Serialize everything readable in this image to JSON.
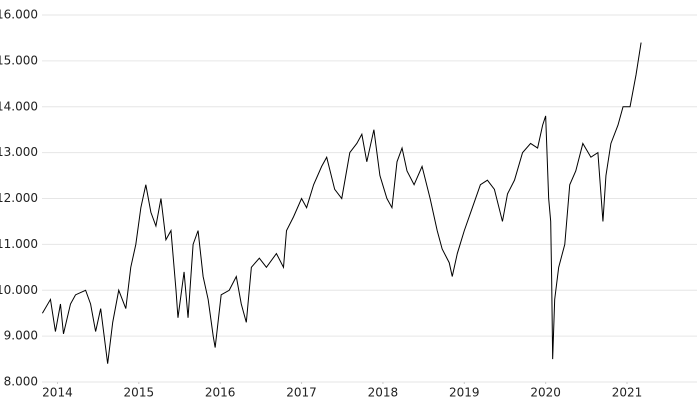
{
  "chart_data": {
    "type": "line",
    "x": [
      2013.815,
      2013.914,
      2013.975,
      2014.037,
      2014.074,
      2014.16,
      2014.222,
      2014.346,
      2014.407,
      2014.469,
      2014.531,
      2014.617,
      2014.679,
      2014.753,
      2014.84,
      2014.901,
      2014.963,
      2015.025,
      2015.086,
      2015.148,
      2015.21,
      2015.272,
      2015.333,
      2015.395,
      2015.457,
      2015.481,
      2015.556,
      2015.605,
      2015.667,
      2015.728,
      2015.79,
      2015.852,
      2015.914,
      2015.938,
      2016.012,
      2016.111,
      2016.198,
      2016.259,
      2016.321,
      2016.383,
      2016.481,
      2016.568,
      2016.691,
      2016.778,
      2016.815,
      2016.901,
      2017.0,
      2017.062,
      2017.148,
      2017.247,
      2017.309,
      2017.407,
      2017.494,
      2017.593,
      2017.679,
      2017.741,
      2017.802,
      2017.889,
      2017.963,
      2018.049,
      2018.111,
      2018.173,
      2018.235,
      2018.296,
      2018.383,
      2018.481,
      2018.58,
      2018.667,
      2018.728,
      2018.815,
      2018.852,
      2018.914,
      2019.0,
      2019.099,
      2019.198,
      2019.284,
      2019.37,
      2019.469,
      2019.531,
      2019.617,
      2019.716,
      2019.815,
      2019.901,
      2019.963,
      2020.0,
      2020.037,
      2020.062,
      2020.074,
      2020.086,
      2020.111,
      2020.16,
      2020.235,
      2020.296,
      2020.37,
      2020.457,
      2020.556,
      2020.642,
      2020.704,
      2020.741,
      2020.802,
      2020.889,
      2020.951,
      2021.037,
      2021.111,
      2021.173
    ],
    "series": [
      {
        "color": "#000000",
        "values": [
          9500,
          9800,
          9100,
          9700,
          9050,
          9700,
          9900,
          10000,
          9700,
          9100,
          9600,
          8400,
          9300,
          10000,
          9600,
          10500,
          11000,
          11800,
          12300,
          11700,
          11400,
          12000,
          11100,
          11300,
          10000,
          9400,
          10400,
          9400,
          11000,
          11300,
          10300,
          9800,
          9000,
          8750,
          9900,
          10000,
          10300,
          9700,
          9300,
          10500,
          10700,
          10500,
          10800,
          10500,
          11300,
          11600,
          12000,
          11800,
          12300,
          12700,
          12900,
          12200,
          12000,
          13000,
          13200,
          13400,
          12800,
          13500,
          12500,
          12000,
          11800,
          12800,
          13100,
          12600,
          12300,
          12700,
          12000,
          11300,
          10900,
          10600,
          10300,
          10800,
          11300,
          11800,
          12300,
          12400,
          12200,
          11500,
          12100,
          12400,
          13000,
          13200,
          13100,
          13600,
          13800,
          12000,
          11500,
          10200,
          8500,
          9800,
          10500,
          11000,
          12300,
          12600,
          13200,
          12900,
          13000,
          11500,
          12500,
          13200,
          13600,
          14000,
          14000,
          14700,
          15400
        ]
      }
    ],
    "xlim": [
      2013.81,
      2021.86
    ],
    "xticks": [
      2014,
      2015,
      2016,
      2017,
      2018,
      2019,
      2020,
      2021
    ],
    "ylim": [
      8000,
      16000
    ],
    "yticks": [
      {
        "value": 8000,
        "label": "8.000"
      },
      {
        "value": 9000,
        "label": "9.000"
      },
      {
        "value": 10000,
        "label": "10.000"
      },
      {
        "value": 11000,
        "label": "11.000"
      },
      {
        "value": 12000,
        "label": "12.000"
      },
      {
        "value": 13000,
        "label": "13.000"
      },
      {
        "value": 14000,
        "label": "14.000"
      },
      {
        "value": 15000,
        "label": "15.000"
      },
      {
        "value": 16000,
        "label": "16.000"
      }
    ],
    "grid": true
  }
}
